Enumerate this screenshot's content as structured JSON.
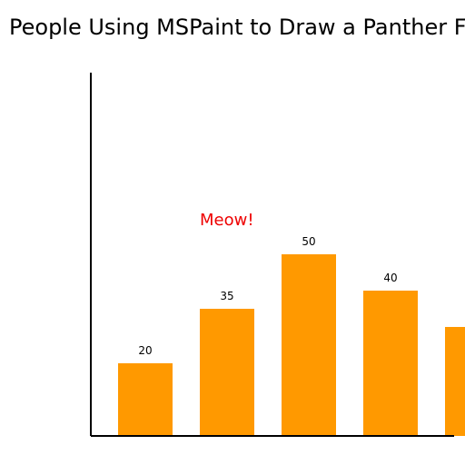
{
  "chart_data": {
    "type": "bar",
    "title": "People Using MSPaint to Draw a Panther F",
    "categories": [
      "",
      "",
      "",
      "",
      ""
    ],
    "values": [
      20,
      35,
      50,
      40,
      30
    ],
    "data_labels": [
      "20",
      "35",
      "50",
      "40",
      ""
    ],
    "ylim": [
      0,
      100
    ],
    "grid": false,
    "bar_color": "#ff9900",
    "annotation": {
      "text": "Meow!",
      "color": "#ee0000"
    }
  }
}
